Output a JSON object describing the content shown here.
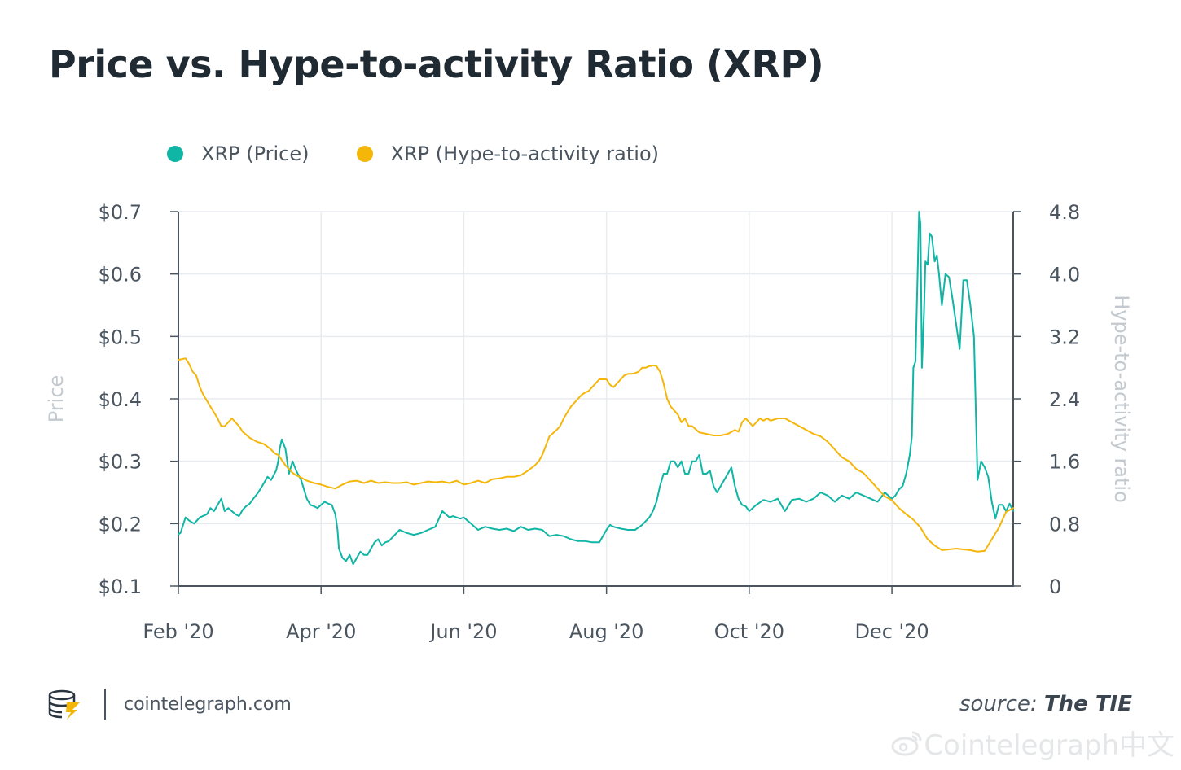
{
  "title": "Price vs. Hype-to-activity Ratio (XRP)",
  "footer": {
    "site": "cointelegraph.com",
    "source_prefix": "source: ",
    "source_name": "The TIE"
  },
  "watermark": "Cointelegraph中文",
  "colors": {
    "price": "#0fb5a5",
    "hype": "#f5b60a",
    "axis": "#4a5560",
    "grid": "#e9ecef",
    "muted": "#c3c9ce"
  },
  "chart_data": {
    "type": "line",
    "title": "Price vs. Hype-to-activity Ratio (XRP)",
    "legend_position": "top-left",
    "x_ticks": [
      "Feb '20",
      "Apr '20",
      "Jun '20",
      "Aug '20",
      "Oct '20",
      "Dec '20"
    ],
    "x_tick_pos": [
      0,
      2,
      4,
      6,
      8,
      10
    ],
    "xlim": [
      0,
      11.7
    ],
    "y_left": {
      "label": "Price",
      "ylim": [
        0.1,
        0.7
      ],
      "ticks": [
        "$0.1",
        "$0.2",
        "$0.3",
        "$0.4",
        "$0.5",
        "$0.6",
        "$0.7"
      ],
      "tick_values": [
        0.1,
        0.2,
        0.3,
        0.4,
        0.5,
        0.6,
        0.7
      ]
    },
    "y_right": {
      "label": "Hype-to-activity ratio",
      "ylim": [
        0,
        4.8
      ],
      "ticks": [
        "0",
        "0.8",
        "1.6",
        "2.4",
        "3.2",
        "4.0",
        "4.8"
      ],
      "tick_values": [
        0,
        0.8,
        1.6,
        2.4,
        3.2,
        4.0,
        4.8
      ]
    },
    "series": [
      {
        "name": "XRP (Price)",
        "axis": "left",
        "color": "#0fb5a5",
        "x": [
          0.0,
          0.03,
          0.1,
          0.15,
          0.22,
          0.3,
          0.4,
          0.45,
          0.5,
          0.55,
          0.6,
          0.65,
          0.7,
          0.8,
          0.85,
          0.9,
          0.95,
          1.0,
          1.05,
          1.12,
          1.2,
          1.25,
          1.3,
          1.37,
          1.4,
          1.42,
          1.45,
          1.5,
          1.55,
          1.6,
          1.65,
          1.72,
          1.8,
          1.85,
          1.9,
          1.95,
          2.0,
          2.05,
          2.1,
          2.15,
          2.2,
          2.23,
          2.25,
          2.3,
          2.35,
          2.4,
          2.45,
          2.5,
          2.55,
          2.6,
          2.65,
          2.7,
          2.75,
          2.8,
          2.85,
          2.9,
          2.95,
          3.0,
          3.1,
          3.2,
          3.3,
          3.4,
          3.5,
          3.6,
          3.7,
          3.8,
          3.85,
          3.9,
          3.95,
          4.0,
          4.1,
          4.2,
          4.3,
          4.4,
          4.5,
          4.6,
          4.7,
          4.8,
          4.9,
          5.0,
          5.1,
          5.2,
          5.3,
          5.4,
          5.5,
          5.6,
          5.7,
          5.8,
          5.9,
          6.0,
          6.05,
          6.1,
          6.2,
          6.3,
          6.4,
          6.5,
          6.6,
          6.65,
          6.7,
          6.75,
          6.8,
          6.85,
          6.9,
          6.95,
          7.0,
          7.05,
          7.1,
          7.15,
          7.2,
          7.25,
          7.3,
          7.35,
          7.4,
          7.45,
          7.5,
          7.55,
          7.6,
          7.65,
          7.7,
          7.75,
          7.8,
          7.85,
          7.9,
          7.95,
          8.0,
          8.1,
          8.2,
          8.3,
          8.4,
          8.5,
          8.6,
          8.7,
          8.8,
          8.9,
          9.0,
          9.1,
          9.2,
          9.3,
          9.4,
          9.5,
          9.6,
          9.7,
          9.8,
          9.9,
          10.0,
          10.05,
          10.1,
          10.15,
          10.2,
          10.25,
          10.28,
          10.3,
          10.33,
          10.36,
          10.38,
          10.4,
          10.42,
          10.45,
          10.47,
          10.5,
          10.53,
          10.56,
          10.6,
          10.63,
          10.66,
          10.7,
          10.75,
          10.8,
          10.85,
          10.9,
          10.95,
          11.0,
          11.05,
          11.1,
          11.15,
          11.2,
          11.25,
          11.3,
          11.35,
          11.4,
          11.45,
          11.5,
          11.55,
          11.6,
          11.65,
          11.7
        ],
        "values": [
          0.183,
          0.185,
          0.21,
          0.205,
          0.2,
          0.21,
          0.215,
          0.225,
          0.22,
          0.23,
          0.24,
          0.22,
          0.225,
          0.215,
          0.212,
          0.222,
          0.228,
          0.232,
          0.24,
          0.25,
          0.265,
          0.275,
          0.27,
          0.285,
          0.3,
          0.32,
          0.335,
          0.32,
          0.28,
          0.3,
          0.285,
          0.27,
          0.24,
          0.23,
          0.228,
          0.225,
          0.23,
          0.235,
          0.232,
          0.23,
          0.215,
          0.19,
          0.16,
          0.145,
          0.14,
          0.15,
          0.135,
          0.145,
          0.155,
          0.15,
          0.15,
          0.16,
          0.17,
          0.175,
          0.165,
          0.17,
          0.172,
          0.178,
          0.19,
          0.185,
          0.182,
          0.185,
          0.19,
          0.195,
          0.22,
          0.21,
          0.212,
          0.21,
          0.208,
          0.21,
          0.2,
          0.19,
          0.195,
          0.192,
          0.19,
          0.192,
          0.188,
          0.195,
          0.19,
          0.192,
          0.19,
          0.18,
          0.182,
          0.18,
          0.175,
          0.172,
          0.172,
          0.17,
          0.17,
          0.19,
          0.198,
          0.195,
          0.192,
          0.19,
          0.19,
          0.198,
          0.21,
          0.22,
          0.235,
          0.26,
          0.28,
          0.28,
          0.3,
          0.3,
          0.29,
          0.3,
          0.28,
          0.28,
          0.3,
          0.3,
          0.31,
          0.28,
          0.28,
          0.285,
          0.26,
          0.25,
          0.26,
          0.27,
          0.28,
          0.29,
          0.26,
          0.24,
          0.23,
          0.228,
          0.22,
          0.23,
          0.238,
          0.235,
          0.24,
          0.22,
          0.238,
          0.24,
          0.235,
          0.24,
          0.25,
          0.245,
          0.235,
          0.245,
          0.24,
          0.25,
          0.245,
          0.24,
          0.235,
          0.25,
          0.24,
          0.245,
          0.255,
          0.26,
          0.28,
          0.31,
          0.34,
          0.45,
          0.46,
          0.6,
          0.7,
          0.68,
          0.45,
          0.54,
          0.62,
          0.615,
          0.665,
          0.66,
          0.62,
          0.63,
          0.6,
          0.55,
          0.6,
          0.595,
          0.56,
          0.52,
          0.48,
          0.59,
          0.59,
          0.55,
          0.5,
          0.27,
          0.3,
          0.29,
          0.275,
          0.235,
          0.208,
          0.23,
          0.23,
          0.22,
          0.232,
          0.22
        ]
      },
      {
        "name": "XRP (Hype-to-activity ratio)",
        "axis": "right",
        "color": "#f5b60a",
        "x": [
          0.0,
          0.1,
          0.15,
          0.2,
          0.25,
          0.3,
          0.35,
          0.45,
          0.55,
          0.6,
          0.65,
          0.7,
          0.75,
          0.8,
          0.85,
          0.9,
          1.0,
          1.1,
          1.2,
          1.3,
          1.35,
          1.4,
          1.5,
          1.55,
          1.6,
          1.65,
          1.7,
          1.8,
          1.9,
          2.0,
          2.1,
          2.2,
          2.3,
          2.4,
          2.5,
          2.6,
          2.7,
          2.8,
          2.9,
          3.0,
          3.1,
          3.2,
          3.3,
          3.4,
          3.5,
          3.6,
          3.7,
          3.8,
          3.9,
          4.0,
          4.1,
          4.2,
          4.3,
          4.4,
          4.5,
          4.6,
          4.7,
          4.8,
          4.9,
          5.0,
          5.05,
          5.1,
          5.15,
          5.2,
          5.25,
          5.3,
          5.35,
          5.4,
          5.5,
          5.6,
          5.65,
          5.7,
          5.75,
          5.8,
          5.85,
          5.9,
          5.95,
          6.0,
          6.05,
          6.1,
          6.15,
          6.2,
          6.25,
          6.3,
          6.35,
          6.4,
          6.45,
          6.5,
          6.55,
          6.6,
          6.62,
          6.65,
          6.7,
          6.75,
          6.8,
          6.85,
          6.9,
          7.0,
          7.05,
          7.1,
          7.15,
          7.2,
          7.3,
          7.4,
          7.5,
          7.6,
          7.7,
          7.8,
          7.85,
          7.9,
          7.95,
          8.0,
          8.05,
          8.1,
          8.15,
          8.2,
          8.25,
          8.3,
          8.4,
          8.5,
          8.6,
          8.7,
          8.8,
          8.9,
          9.0,
          9.1,
          9.2,
          9.3,
          9.4,
          9.5,
          9.6,
          9.7,
          9.8,
          9.9,
          10.0,
          10.1,
          10.2,
          10.3,
          10.4,
          10.5,
          10.6,
          10.7,
          10.8,
          10.9,
          11.0,
          11.1,
          11.15,
          11.2,
          11.3,
          11.4,
          11.5,
          11.6,
          11.7
        ],
        "values": [
          2.9,
          2.92,
          2.85,
          2.75,
          2.7,
          2.55,
          2.45,
          2.3,
          2.15,
          2.05,
          2.05,
          2.1,
          2.15,
          2.1,
          2.05,
          1.98,
          1.9,
          1.85,
          1.82,
          1.75,
          1.7,
          1.68,
          1.55,
          1.5,
          1.45,
          1.42,
          1.4,
          1.35,
          1.32,
          1.3,
          1.27,
          1.25,
          1.3,
          1.34,
          1.35,
          1.32,
          1.35,
          1.32,
          1.33,
          1.32,
          1.32,
          1.33,
          1.3,
          1.32,
          1.34,
          1.33,
          1.34,
          1.32,
          1.35,
          1.3,
          1.32,
          1.35,
          1.32,
          1.37,
          1.38,
          1.4,
          1.4,
          1.42,
          1.48,
          1.55,
          1.6,
          1.68,
          1.8,
          1.92,
          1.96,
          2.0,
          2.05,
          2.15,
          2.3,
          2.4,
          2.45,
          2.48,
          2.5,
          2.55,
          2.6,
          2.65,
          2.65,
          2.65,
          2.58,
          2.55,
          2.6,
          2.65,
          2.7,
          2.72,
          2.72,
          2.73,
          2.75,
          2.8,
          2.8,
          2.82,
          2.82,
          2.83,
          2.82,
          2.75,
          2.6,
          2.4,
          2.3,
          2.2,
          2.1,
          2.15,
          2.05,
          2.05,
          1.97,
          1.95,
          1.93,
          1.93,
          1.95,
          2.0,
          1.98,
          2.1,
          2.15,
          2.1,
          2.05,
          2.1,
          2.15,
          2.12,
          2.15,
          2.12,
          2.15,
          2.15,
          2.1,
          2.05,
          2.0,
          1.95,
          1.92,
          1.85,
          1.75,
          1.65,
          1.6,
          1.5,
          1.45,
          1.35,
          1.25,
          1.15,
          1.1,
          1.0,
          0.92,
          0.85,
          0.75,
          0.6,
          0.52,
          0.46,
          0.47,
          0.48,
          0.47,
          0.46,
          0.45,
          0.44,
          0.45,
          0.6,
          0.75,
          0.95,
          1.0
        ]
      }
    ]
  }
}
